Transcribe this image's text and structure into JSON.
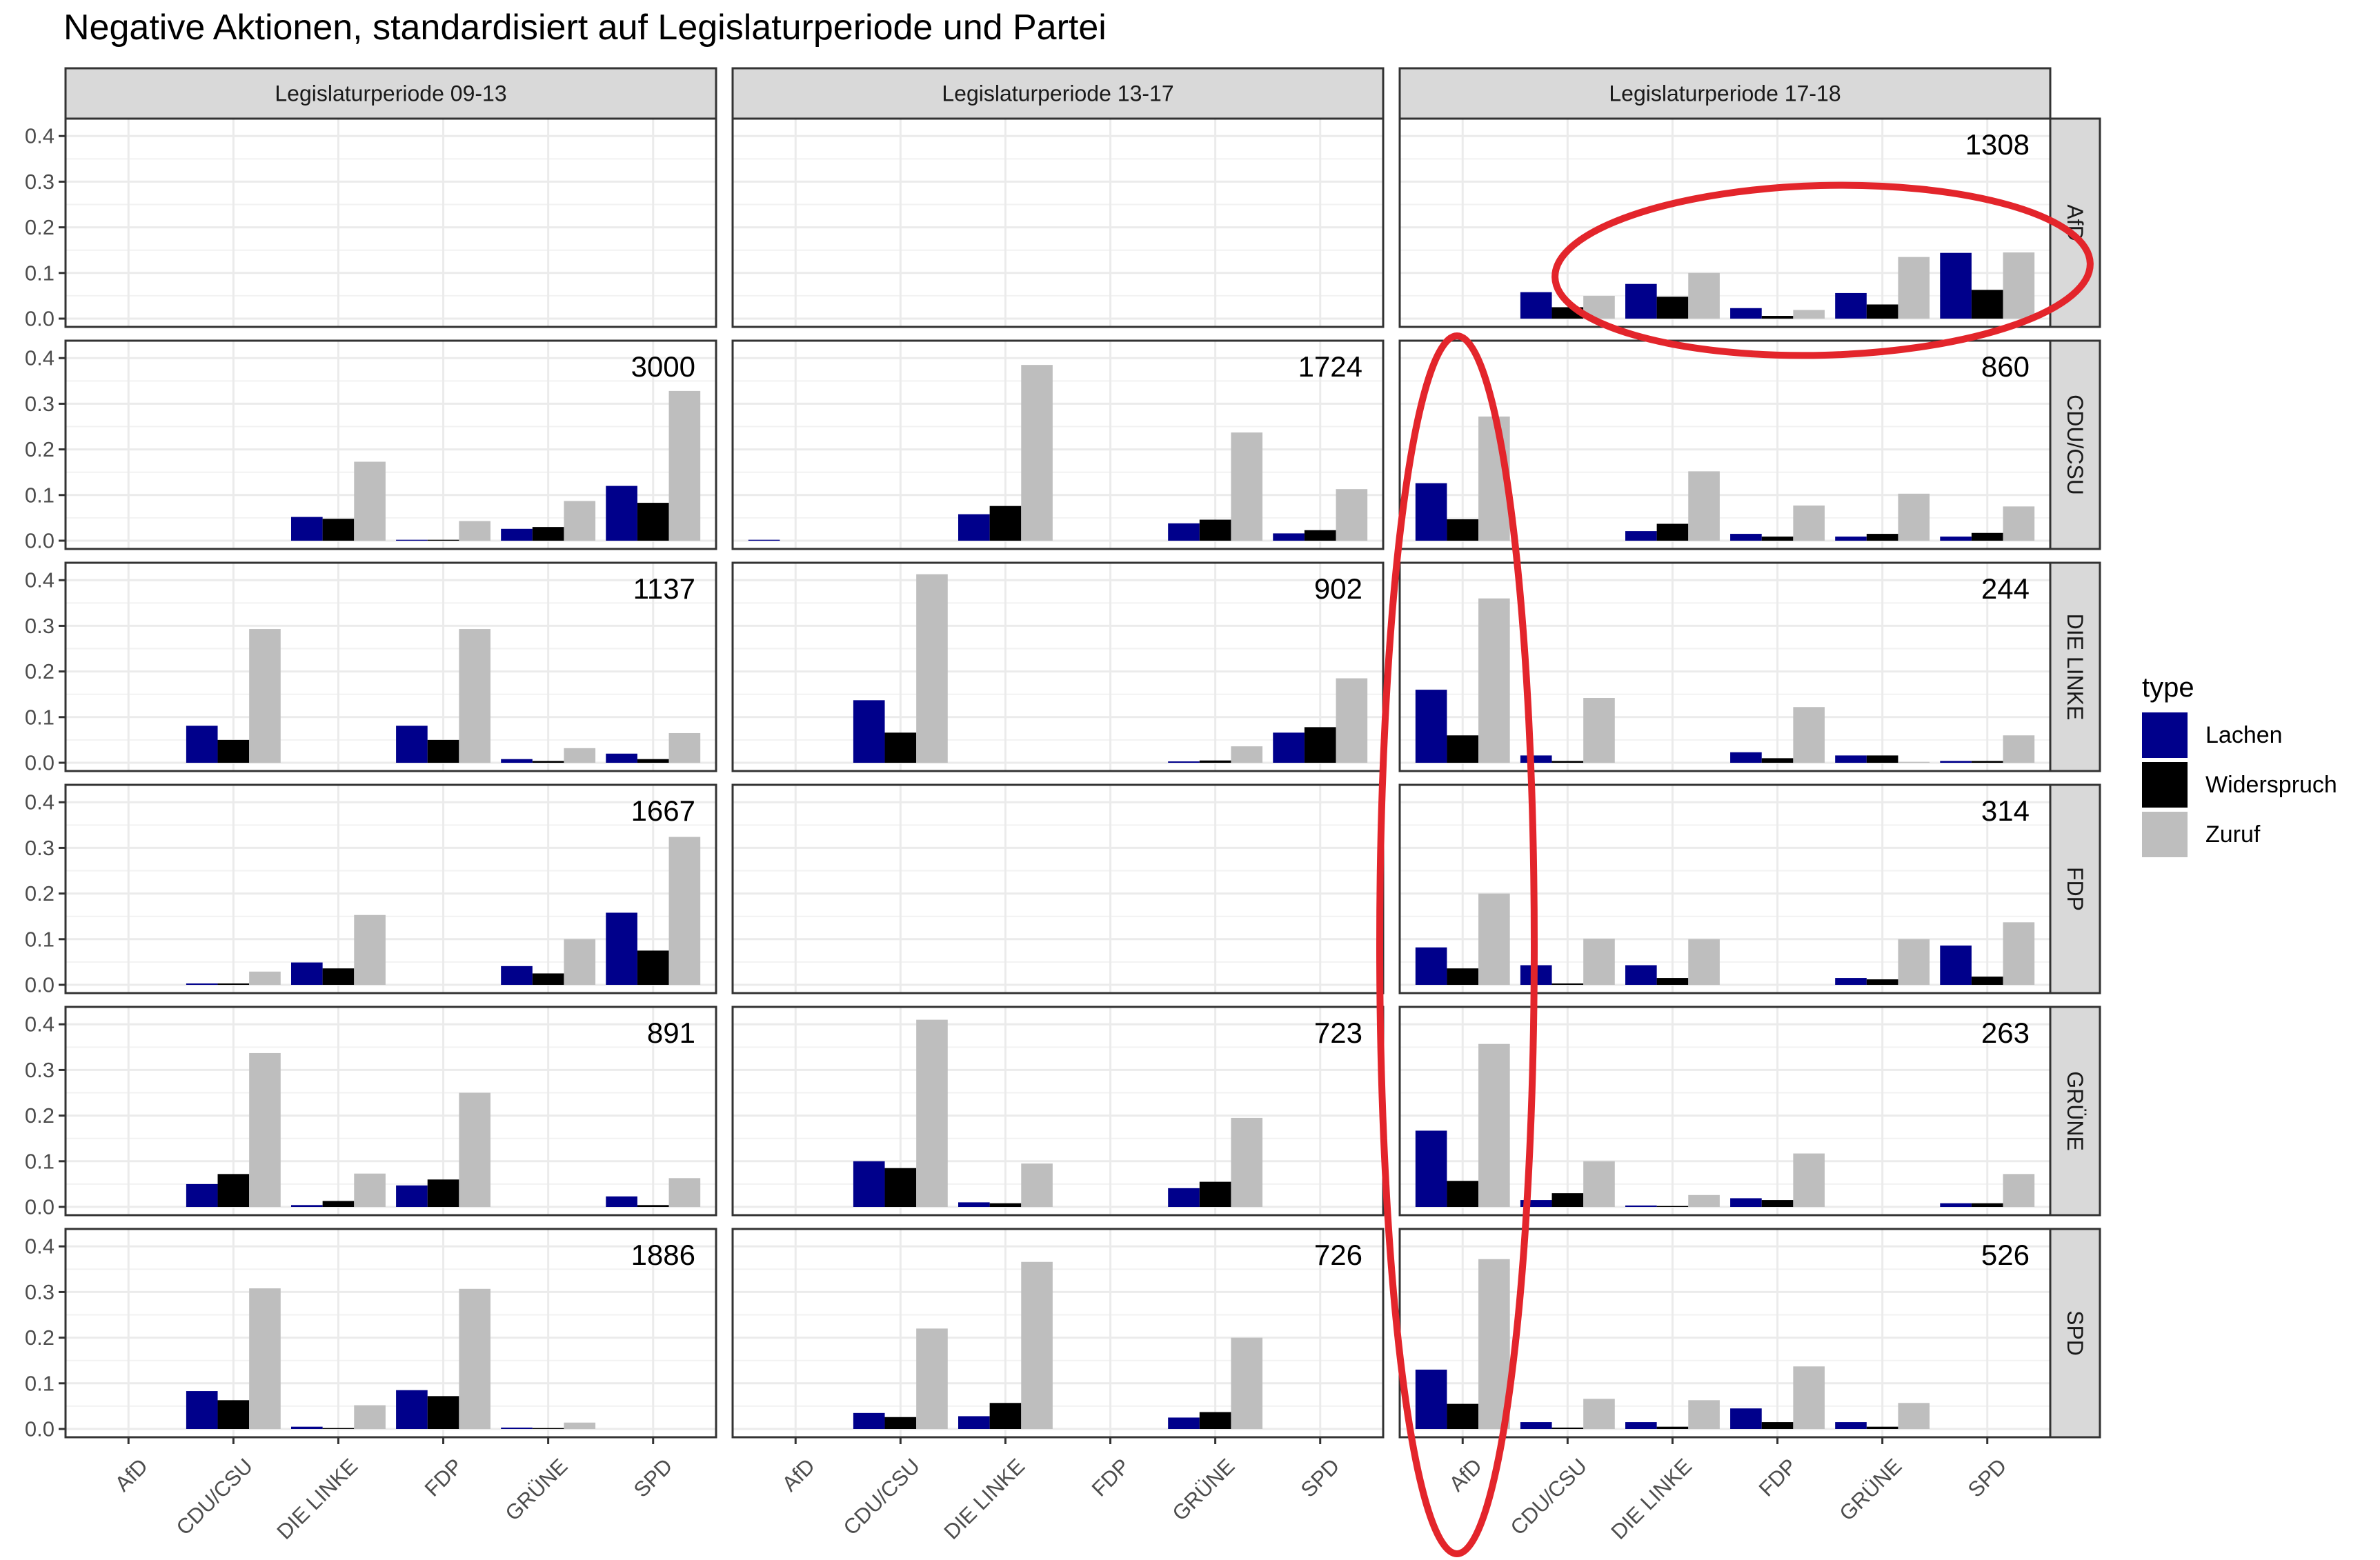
{
  "chart_data": {
    "type": "bar",
    "title": "Negative Aktionen, standardisiert auf Legislaturperiode und Partei",
    "facet_cols": [
      "Legislaturperiode 09-13",
      "Legislaturperiode 13-17",
      "Legislaturperiode 17-18"
    ],
    "facet_rows": [
      "AfD",
      "CDU/CSU",
      "DIE LINKE",
      "FDP",
      "GRÜNE",
      "SPD"
    ],
    "categories": [
      "AfD",
      "CDU/CSU",
      "DIE LINKE",
      "FDP",
      "GRÜNE",
      "SPD"
    ],
    "ylim": [
      0,
      0.42
    ],
    "yticks": [
      0.0,
      0.1,
      0.2,
      0.3,
      0.4
    ],
    "ytick_labels": [
      "0.0",
      "0.1",
      "0.2",
      "0.3",
      "0.4"
    ],
    "legend": {
      "title": "type",
      "entries": [
        {
          "name": "Lachen",
          "color": "#00008B"
        },
        {
          "name": "Widerspruch",
          "color": "#000000"
        },
        {
          "name": "Zuruf",
          "color": "#BEBEBE"
        }
      ]
    },
    "panels": [
      [
        {
          "count": "",
          "bars": [
            [
              0,
              0,
              0
            ],
            [
              0,
              0,
              0
            ],
            [
              0,
              0,
              0
            ],
            [
              0,
              0,
              0
            ],
            [
              0,
              0,
              0
            ],
            [
              0,
              0,
              0
            ]
          ]
        },
        {
          "count": "",
          "bars": [
            [
              0,
              0,
              0
            ],
            [
              0,
              0,
              0
            ],
            [
              0,
              0,
              0
            ],
            [
              0,
              0,
              0
            ],
            [
              0,
              0,
              0
            ],
            [
              0,
              0,
              0
            ]
          ]
        },
        {
          "count": "1308",
          "bars": [
            [
              0,
              0,
              0
            ],
            [
              0.058,
              0.025,
              0.05
            ],
            [
              0.076,
              0.048,
              0.1
            ],
            [
              0.023,
              0.006,
              0.019
            ],
            [
              0.056,
              0.031,
              0.135
            ],
            [
              0.144,
              0.063,
              0.145
            ]
          ]
        }
      ],
      [
        {
          "count": "3000",
          "bars": [
            [
              0,
              0,
              0
            ],
            [
              0,
              0,
              0
            ],
            [
              0.052,
              0.048,
              0.173
            ],
            [
              0.002,
              0.002,
              0.043
            ],
            [
              0.026,
              0.03,
              0.087
            ],
            [
              0.12,
              0.083,
              0.328
            ]
          ]
        },
        {
          "count": "1724",
          "bars": [
            [
              0.002,
              0,
              0
            ],
            [
              0,
              0,
              0
            ],
            [
              0.058,
              0.076,
              0.385
            ],
            [
              0,
              0,
              0
            ],
            [
              0.038,
              0.046,
              0.237
            ],
            [
              0.016,
              0.023,
              0.113
            ]
          ]
        },
        {
          "count": "860",
          "bars": [
            [
              0.126,
              0.047,
              0.272
            ],
            [
              0,
              0,
              0
            ],
            [
              0.021,
              0.037,
              0.152
            ],
            [
              0.015,
              0.009,
              0.077
            ],
            [
              0.009,
              0.015,
              0.103
            ],
            [
              0.009,
              0.017,
              0.075
            ]
          ]
        }
      ],
      [
        {
          "count": "1137",
          "bars": [
            [
              0,
              0,
              0
            ],
            [
              0.081,
              0.05,
              0.293
            ],
            [
              0,
              0,
              0
            ],
            [
              0.081,
              0.05,
              0.293
            ],
            [
              0.008,
              0.004,
              0.032
            ],
            [
              0.02,
              0.008,
              0.065
            ]
          ]
        },
        {
          "count": "902",
          "bars": [
            [
              0,
              0,
              0
            ],
            [
              0.137,
              0.066,
              0.413
            ],
            [
              0,
              0,
              0
            ],
            [
              0,
              0,
              0
            ],
            [
              0.003,
              0.005,
              0.036
            ],
            [
              0.066,
              0.078,
              0.185
            ]
          ]
        },
        {
          "count": "244",
          "bars": [
            [
              0.16,
              0.06,
              0.36
            ],
            [
              0.016,
              0.004,
              0.142
            ],
            [
              0,
              0,
              0
            ],
            [
              0.023,
              0.01,
              0.122
            ],
            [
              0.016,
              0.016,
              0.002
            ],
            [
              0.004,
              0.004,
              0.06
            ]
          ]
        }
      ],
      [
        {
          "count": "1667",
          "bars": [
            [
              0,
              0,
              0
            ],
            [
              0.003,
              0.003,
              0.029
            ],
            [
              0.049,
              0.036,
              0.153
            ],
            [
              0,
              0,
              0
            ],
            [
              0.041,
              0.025,
              0.1
            ],
            [
              0.158,
              0.075,
              0.324
            ]
          ]
        },
        {
          "count": "",
          "bars": [
            [
              0,
              0,
              0
            ],
            [
              0,
              0,
              0
            ],
            [
              0,
              0,
              0
            ],
            [
              0,
              0,
              0
            ],
            [
              0,
              0,
              0
            ],
            [
              0,
              0,
              0
            ]
          ]
        },
        {
          "count": "314",
          "bars": [
            [
              0.082,
              0.036,
              0.2
            ],
            [
              0.043,
              0.003,
              0.101
            ],
            [
              0.043,
              0.015,
              0.1
            ],
            [
              0,
              0,
              0
            ],
            [
              0.015,
              0.012,
              0.1
            ],
            [
              0.086,
              0.018,
              0.137
            ]
          ]
        }
      ],
      [
        {
          "count": "891",
          "bars": [
            [
              0,
              0,
              0
            ],
            [
              0.05,
              0.072,
              0.337
            ],
            [
              0.004,
              0.013,
              0.073
            ],
            [
              0.047,
              0.06,
              0.25
            ],
            [
              0,
              0,
              0
            ],
            [
              0.023,
              0.004,
              0.063
            ]
          ]
        },
        {
          "count": "723",
          "bars": [
            [
              0,
              0,
              0
            ],
            [
              0.1,
              0.085,
              0.41
            ],
            [
              0.01,
              0.008,
              0.095
            ],
            [
              0,
              0,
              0
            ],
            [
              0.041,
              0.055,
              0.195
            ],
            [
              0,
              0,
              0
            ]
          ]
        },
        {
          "count": "263",
          "bars": [
            [
              0.167,
              0.057,
              0.357
            ],
            [
              0.015,
              0.03,
              0.1
            ],
            [
              0.003,
              0.002,
              0.026
            ],
            [
              0.019,
              0.015,
              0.117
            ],
            [
              0,
              0,
              0
            ],
            [
              0.008,
              0.008,
              0.072
            ]
          ]
        }
      ],
      [
        {
          "count": "1886",
          "bars": [
            [
              0,
              0,
              0
            ],
            [
              0.083,
              0.063,
              0.308
            ],
            [
              0.005,
              0.002,
              0.052
            ],
            [
              0.085,
              0.072,
              0.307
            ],
            [
              0.003,
              0.002,
              0.014
            ],
            [
              0,
              0,
              0
            ]
          ]
        },
        {
          "count": "726",
          "bars": [
            [
              0,
              0,
              0
            ],
            [
              0.035,
              0.026,
              0.22
            ],
            [
              0.028,
              0.057,
              0.366
            ],
            [
              0,
              0,
              0
            ],
            [
              0.025,
              0.037,
              0.2
            ],
            [
              0,
              0,
              0
            ]
          ]
        },
        {
          "count": "526",
          "bars": [
            [
              0.13,
              0.055,
              0.372
            ],
            [
              0.015,
              0.003,
              0.066
            ],
            [
              0.015,
              0.005,
              0.063
            ],
            [
              0.045,
              0.015,
              0.137
            ],
            [
              0.015,
              0.005,
              0.057
            ],
            [
              0,
              0,
              0
            ]
          ]
        }
      ]
    ]
  }
}
